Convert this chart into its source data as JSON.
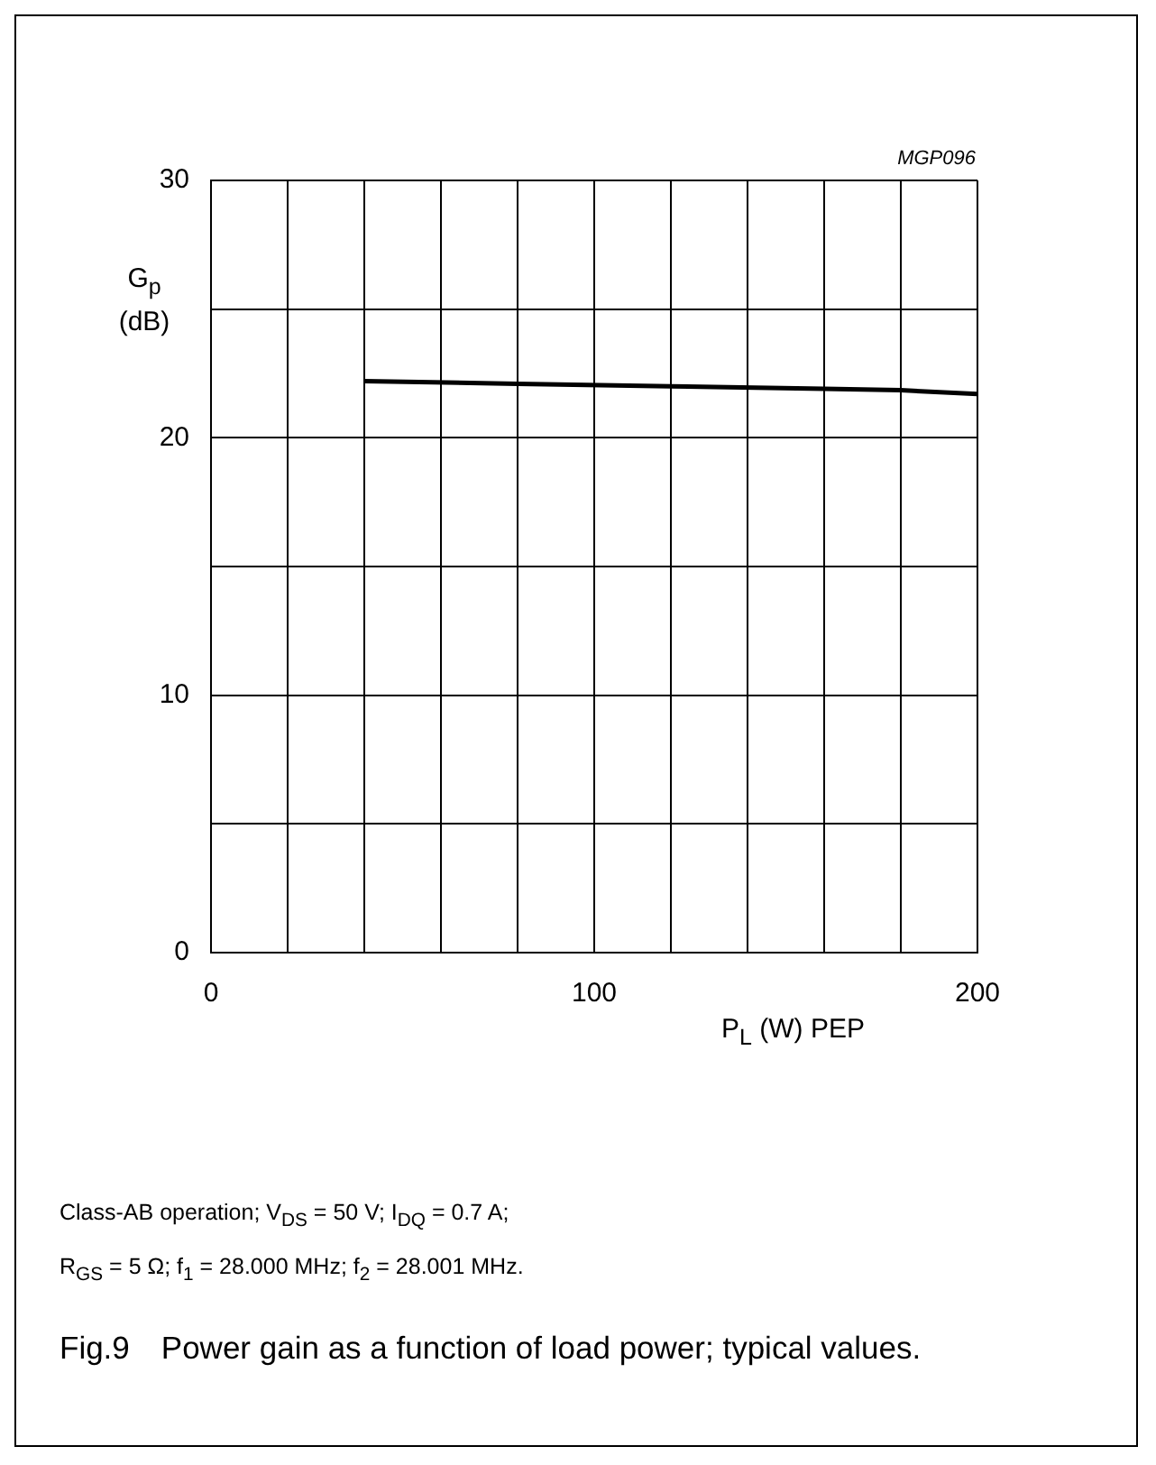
{
  "chart_data": {
    "type": "line",
    "title": "Fig.9 Power gain as a function of load power; typical values.",
    "xlabel": "P$_{L}$ (W) PEP",
    "ylabel": "G$_{p}$ (dB)",
    "annotations": [
      "MGP096",
      "Class-AB operation; V$_{DS}$ = 50 V; I$_{DQ}$ = 0.7 A;\nR$_{GS}$ = 5 Ω; f$_{1}$ = 28.000 MHz; f$_{2}$ = 28.001 MHz."
    ],
    "x": [
      40,
      80,
      120,
      160,
      180,
      200
    ],
    "series": [
      {
        "color": "#000000",
        "values": [
          22.2,
          22.1,
          22.0,
          21.9,
          21.85,
          21.7
        ]
      }
    ],
    "xlim": [
      0,
      200
    ],
    "xticks": [
      0,
      {
        "value": 20,
        "label": null
      },
      {
        "value": 40,
        "label": null
      },
      {
        "value": 60,
        "label": null
      },
      {
        "value": 80,
        "label": null
      },
      100,
      {
        "value": 120,
        "label": null
      },
      {
        "value": 140,
        "label": null
      },
      {
        "value": 160,
        "label": null
      },
      {
        "value": 180,
        "label": null
      },
      200
    ],
    "ylim": [
      0,
      30
    ],
    "yticks": [
      0,
      {
        "value": 5,
        "label": null
      },
      10,
      {
        "value": 15,
        "label": null
      },
      20,
      {
        "value": 25,
        "label": null
      },
      30
    ],
    "grid": true,
    "legend": false,
    "marker": "none",
    "line_style": "solid"
  }
}
